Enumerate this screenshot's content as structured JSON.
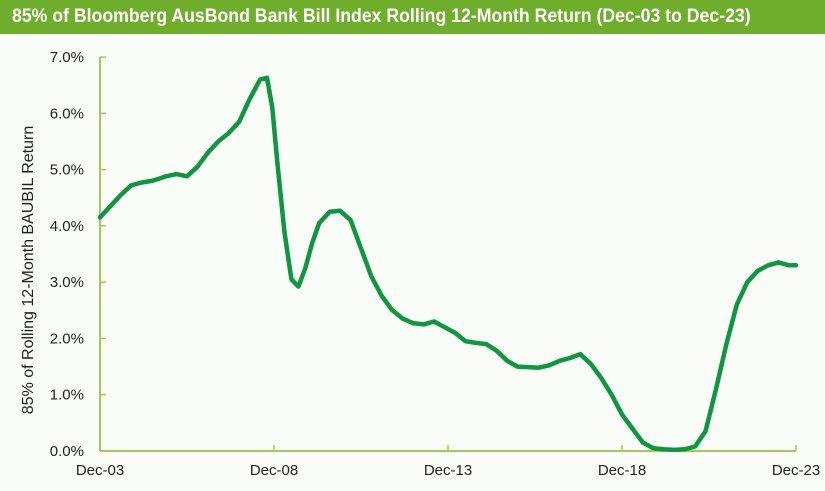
{
  "title": "85% of Bloomberg AusBond Bank Bill Index Rolling 12-Month Return (Dec-03 to Dec-23)",
  "colors": {
    "title_bg": "#6fae2b",
    "axis": "#9ccc5a",
    "line": "#0e9640",
    "background": "#f9fcf7"
  },
  "chart_data": {
    "type": "line",
    "title": "85% of Bloomberg AusBond Bank Bill Index Rolling 12-Month Return (Dec-03 to Dec-23)",
    "xlabel": "",
    "ylabel": "85% of Rolling 12-Month BAUBIL Return",
    "ylim": [
      0,
      7
    ],
    "y_ticks": [
      "0.0%",
      "1.0%",
      "2.0%",
      "3.0%",
      "4.0%",
      "5.0%",
      "6.0%",
      "7.0%"
    ],
    "x_ticks": [
      "Dec-03",
      "Dec-08",
      "Dec-13",
      "Dec-18",
      "Dec-23"
    ],
    "grid": false,
    "legend": "none",
    "x_unit": "years since Dec-03",
    "series": [
      {
        "name": "85% of Rolling 12-Month BAUBIL Return",
        "x": [
          0,
          0.3,
          0.6,
          0.9,
          1.2,
          1.5,
          1.7,
          1.9,
          2.2,
          2.5,
          2.8,
          3.1,
          3.4,
          3.7,
          4.0,
          4.3,
          4.6,
          4.8,
          4.95,
          5.1,
          5.3,
          5.5,
          5.7,
          5.9,
          6.1,
          6.3,
          6.6,
          6.9,
          7.2,
          7.5,
          7.8,
          8.1,
          8.4,
          8.7,
          9.0,
          9.3,
          9.6,
          9.9,
          10.2,
          10.5,
          10.8,
          11.1,
          11.4,
          11.7,
          12.0,
          12.3,
          12.6,
          12.9,
          13.2,
          13.5,
          13.8,
          14.1,
          14.4,
          14.7,
          15.0,
          15.3,
          15.6,
          15.9,
          16.2,
          16.5,
          16.8,
          17.1,
          17.4,
          17.7,
          18.0,
          18.3,
          18.6,
          18.9,
          19.2,
          19.5,
          19.8,
          20.0
        ],
        "values": [
          4.15,
          4.35,
          4.55,
          4.72,
          4.77,
          4.8,
          4.84,
          4.88,
          4.92,
          4.88,
          5.05,
          5.3,
          5.5,
          5.65,
          5.85,
          6.25,
          6.6,
          6.63,
          6.1,
          5.1,
          3.9,
          3.05,
          2.92,
          3.25,
          3.7,
          4.05,
          4.25,
          4.27,
          4.1,
          3.6,
          3.1,
          2.75,
          2.5,
          2.35,
          2.27,
          2.25,
          2.3,
          2.2,
          2.1,
          1.95,
          1.92,
          1.9,
          1.78,
          1.6,
          1.5,
          1.49,
          1.48,
          1.52,
          1.6,
          1.65,
          1.72,
          1.55,
          1.3,
          1.0,
          0.65,
          0.4,
          0.15,
          0.05,
          0.03,
          0.02,
          0.03,
          0.08,
          0.35,
          1.1,
          1.9,
          2.6,
          3.0,
          3.2,
          3.3,
          3.35,
          3.3,
          3.3
        ]
      }
    ]
  }
}
